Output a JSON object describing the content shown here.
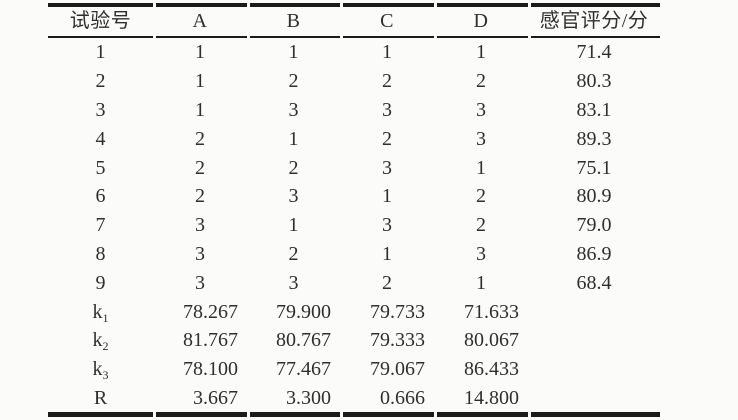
{
  "table": {
    "columns": [
      "试验号",
      "A",
      "B",
      "C",
      "D",
      "感官评分/分"
    ],
    "trial_rows": [
      {
        "no": "1",
        "values": [
          "1",
          "1",
          "1",
          "1"
        ],
        "score": "71.4"
      },
      {
        "no": "2",
        "values": [
          "1",
          "2",
          "2",
          "2"
        ],
        "score": "80.3"
      },
      {
        "no": "3",
        "values": [
          "1",
          "3",
          "3",
          "3"
        ],
        "score": "83.1"
      },
      {
        "no": "4",
        "values": [
          "2",
          "1",
          "2",
          "3"
        ],
        "score": "89.3"
      },
      {
        "no": "5",
        "values": [
          "2",
          "2",
          "3",
          "1"
        ],
        "score": "75.1"
      },
      {
        "no": "6",
        "values": [
          "2",
          "3",
          "1",
          "2"
        ],
        "score": "80.9"
      },
      {
        "no": "7",
        "values": [
          "3",
          "1",
          "3",
          "2"
        ],
        "score": "79.0"
      },
      {
        "no": "8",
        "values": [
          "3",
          "2",
          "1",
          "3"
        ],
        "score": "86.9"
      },
      {
        "no": "9",
        "values": [
          "3",
          "3",
          "2",
          "1"
        ],
        "score": "68.4"
      }
    ],
    "summary_rows": [
      {
        "label": "k",
        "subscript": "1",
        "values": [
          "78.267",
          "79.900",
          "79.733",
          "71.633"
        ],
        "score": ""
      },
      {
        "label": "k",
        "subscript": "2",
        "values": [
          "81.767",
          "80.767",
          "79.333",
          "80.067"
        ],
        "score": ""
      },
      {
        "label": "k",
        "subscript": "3",
        "values": [
          "78.100",
          "77.467",
          "79.067",
          "86.433"
        ],
        "score": ""
      },
      {
        "label": "R",
        "subscript": "",
        "values": [
          "3.667",
          "3.300",
          "0.666",
          "14.800"
        ],
        "score": ""
      }
    ],
    "colors": {
      "rule": "#1b1b1b",
      "text": "#2f2f2f",
      "background": "#fbfbfa"
    }
  }
}
